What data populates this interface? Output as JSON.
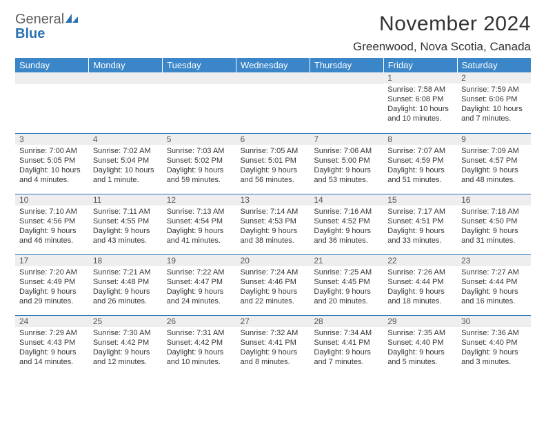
{
  "logo": {
    "general": "General",
    "blue": "Blue"
  },
  "header": {
    "month_title": "November 2024",
    "location": "Greenwood, Nova Scotia, Canada"
  },
  "colors": {
    "header_bg": "#3a86c8",
    "header_text": "#ffffff",
    "daynum_bg": "#eeeeee",
    "rule": "#2a72b5",
    "text": "#333333",
    "logo_gray": "#5f5f5f",
    "logo_blue": "#2a72b5"
  },
  "weekdays": [
    "Sunday",
    "Monday",
    "Tuesday",
    "Wednesday",
    "Thursday",
    "Friday",
    "Saturday"
  ],
  "weeks": [
    [
      {
        "day": ""
      },
      {
        "day": ""
      },
      {
        "day": ""
      },
      {
        "day": ""
      },
      {
        "day": ""
      },
      {
        "day": "1",
        "sunrise": "Sunrise: 7:58 AM",
        "sunset": "Sunset: 6:08 PM",
        "dl1": "Daylight: 10 hours",
        "dl2": "and 10 minutes."
      },
      {
        "day": "2",
        "sunrise": "Sunrise: 7:59 AM",
        "sunset": "Sunset: 6:06 PM",
        "dl1": "Daylight: 10 hours",
        "dl2": "and 7 minutes."
      }
    ],
    [
      {
        "day": "3",
        "sunrise": "Sunrise: 7:00 AM",
        "sunset": "Sunset: 5:05 PM",
        "dl1": "Daylight: 10 hours",
        "dl2": "and 4 minutes."
      },
      {
        "day": "4",
        "sunrise": "Sunrise: 7:02 AM",
        "sunset": "Sunset: 5:04 PM",
        "dl1": "Daylight: 10 hours",
        "dl2": "and 1 minute."
      },
      {
        "day": "5",
        "sunrise": "Sunrise: 7:03 AM",
        "sunset": "Sunset: 5:02 PM",
        "dl1": "Daylight: 9 hours",
        "dl2": "and 59 minutes."
      },
      {
        "day": "6",
        "sunrise": "Sunrise: 7:05 AM",
        "sunset": "Sunset: 5:01 PM",
        "dl1": "Daylight: 9 hours",
        "dl2": "and 56 minutes."
      },
      {
        "day": "7",
        "sunrise": "Sunrise: 7:06 AM",
        "sunset": "Sunset: 5:00 PM",
        "dl1": "Daylight: 9 hours",
        "dl2": "and 53 minutes."
      },
      {
        "day": "8",
        "sunrise": "Sunrise: 7:07 AM",
        "sunset": "Sunset: 4:59 PM",
        "dl1": "Daylight: 9 hours",
        "dl2": "and 51 minutes."
      },
      {
        "day": "9",
        "sunrise": "Sunrise: 7:09 AM",
        "sunset": "Sunset: 4:57 PM",
        "dl1": "Daylight: 9 hours",
        "dl2": "and 48 minutes."
      }
    ],
    [
      {
        "day": "10",
        "sunrise": "Sunrise: 7:10 AM",
        "sunset": "Sunset: 4:56 PM",
        "dl1": "Daylight: 9 hours",
        "dl2": "and 46 minutes."
      },
      {
        "day": "11",
        "sunrise": "Sunrise: 7:11 AM",
        "sunset": "Sunset: 4:55 PM",
        "dl1": "Daylight: 9 hours",
        "dl2": "and 43 minutes."
      },
      {
        "day": "12",
        "sunrise": "Sunrise: 7:13 AM",
        "sunset": "Sunset: 4:54 PM",
        "dl1": "Daylight: 9 hours",
        "dl2": "and 41 minutes."
      },
      {
        "day": "13",
        "sunrise": "Sunrise: 7:14 AM",
        "sunset": "Sunset: 4:53 PM",
        "dl1": "Daylight: 9 hours",
        "dl2": "and 38 minutes."
      },
      {
        "day": "14",
        "sunrise": "Sunrise: 7:16 AM",
        "sunset": "Sunset: 4:52 PM",
        "dl1": "Daylight: 9 hours",
        "dl2": "and 36 minutes."
      },
      {
        "day": "15",
        "sunrise": "Sunrise: 7:17 AM",
        "sunset": "Sunset: 4:51 PM",
        "dl1": "Daylight: 9 hours",
        "dl2": "and 33 minutes."
      },
      {
        "day": "16",
        "sunrise": "Sunrise: 7:18 AM",
        "sunset": "Sunset: 4:50 PM",
        "dl1": "Daylight: 9 hours",
        "dl2": "and 31 minutes."
      }
    ],
    [
      {
        "day": "17",
        "sunrise": "Sunrise: 7:20 AM",
        "sunset": "Sunset: 4:49 PM",
        "dl1": "Daylight: 9 hours",
        "dl2": "and 29 minutes."
      },
      {
        "day": "18",
        "sunrise": "Sunrise: 7:21 AM",
        "sunset": "Sunset: 4:48 PM",
        "dl1": "Daylight: 9 hours",
        "dl2": "and 26 minutes."
      },
      {
        "day": "19",
        "sunrise": "Sunrise: 7:22 AM",
        "sunset": "Sunset: 4:47 PM",
        "dl1": "Daylight: 9 hours",
        "dl2": "and 24 minutes."
      },
      {
        "day": "20",
        "sunrise": "Sunrise: 7:24 AM",
        "sunset": "Sunset: 4:46 PM",
        "dl1": "Daylight: 9 hours",
        "dl2": "and 22 minutes."
      },
      {
        "day": "21",
        "sunrise": "Sunrise: 7:25 AM",
        "sunset": "Sunset: 4:45 PM",
        "dl1": "Daylight: 9 hours",
        "dl2": "and 20 minutes."
      },
      {
        "day": "22",
        "sunrise": "Sunrise: 7:26 AM",
        "sunset": "Sunset: 4:44 PM",
        "dl1": "Daylight: 9 hours",
        "dl2": "and 18 minutes."
      },
      {
        "day": "23",
        "sunrise": "Sunrise: 7:27 AM",
        "sunset": "Sunset: 4:44 PM",
        "dl1": "Daylight: 9 hours",
        "dl2": "and 16 minutes."
      }
    ],
    [
      {
        "day": "24",
        "sunrise": "Sunrise: 7:29 AM",
        "sunset": "Sunset: 4:43 PM",
        "dl1": "Daylight: 9 hours",
        "dl2": "and 14 minutes."
      },
      {
        "day": "25",
        "sunrise": "Sunrise: 7:30 AM",
        "sunset": "Sunset: 4:42 PM",
        "dl1": "Daylight: 9 hours",
        "dl2": "and 12 minutes."
      },
      {
        "day": "26",
        "sunrise": "Sunrise: 7:31 AM",
        "sunset": "Sunset: 4:42 PM",
        "dl1": "Daylight: 9 hours",
        "dl2": "and 10 minutes."
      },
      {
        "day": "27",
        "sunrise": "Sunrise: 7:32 AM",
        "sunset": "Sunset: 4:41 PM",
        "dl1": "Daylight: 9 hours",
        "dl2": "and 8 minutes."
      },
      {
        "day": "28",
        "sunrise": "Sunrise: 7:34 AM",
        "sunset": "Sunset: 4:41 PM",
        "dl1": "Daylight: 9 hours",
        "dl2": "and 7 minutes."
      },
      {
        "day": "29",
        "sunrise": "Sunrise: 7:35 AM",
        "sunset": "Sunset: 4:40 PM",
        "dl1": "Daylight: 9 hours",
        "dl2": "and 5 minutes."
      },
      {
        "day": "30",
        "sunrise": "Sunrise: 7:36 AM",
        "sunset": "Sunset: 4:40 PM",
        "dl1": "Daylight: 9 hours",
        "dl2": "and 3 minutes."
      }
    ]
  ]
}
